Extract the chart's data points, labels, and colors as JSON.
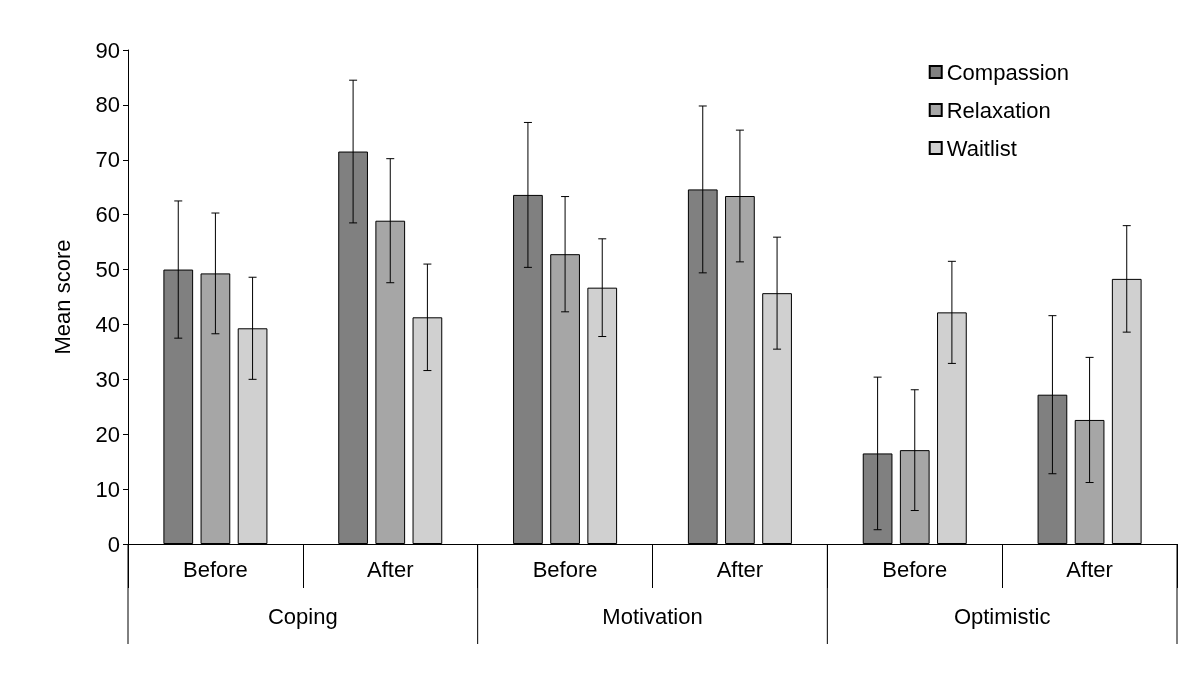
{
  "chart_data": {
    "type": "bar",
    "ylabel": "Mean score",
    "categories": [
      "Before",
      "After",
      "Before",
      "After",
      "Before",
      "After"
    ],
    "annotations": [
      "Coping",
      "Motivation",
      "Optimistic"
    ],
    "series": [
      {
        "name": "Compassion",
        "color": "#808080",
        "values": [
          50,
          71.5,
          63.6,
          64.6,
          16.5,
          27.2
        ],
        "errors": [
          12.5,
          13,
          13.2,
          15.2,
          13.9,
          14.4
        ]
      },
      {
        "name": "Relaxation",
        "color": "#a6a6a6",
        "values": [
          49.3,
          58.9,
          52.8,
          63.4,
          17.1,
          22.6
        ],
        "errors": [
          11,
          11.3,
          10.5,
          12,
          11,
          11.4
        ]
      },
      {
        "name": "Waitlist",
        "color": "#d0d0d0",
        "values": [
          39.3,
          41.3,
          46.7,
          45.7,
          42.2,
          48.3
        ],
        "errors": [
          9.3,
          9.7,
          8.9,
          10.2,
          9.3,
          9.7
        ]
      }
    ],
    "ylim": [
      0,
      90
    ],
    "yticks": [
      0,
      10,
      20,
      30,
      40,
      50,
      60,
      70,
      80,
      90
    ],
    "grid": false,
    "legend": "top right"
  }
}
